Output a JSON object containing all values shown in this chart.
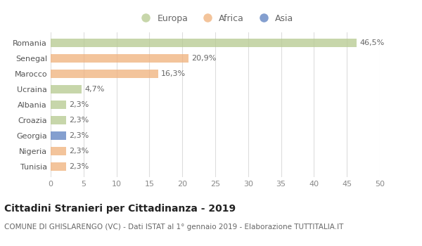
{
  "categories": [
    "Romania",
    "Senegal",
    "Marocco",
    "Ucraina",
    "Albania",
    "Croazia",
    "Georgia",
    "Nigeria",
    "Tunisia"
  ],
  "values": [
    46.5,
    20.9,
    16.3,
    4.7,
    2.3,
    2.3,
    2.3,
    2.3,
    2.3
  ],
  "labels": [
    "46,5%",
    "20,9%",
    "16,3%",
    "4,7%",
    "2,3%",
    "2,3%",
    "2,3%",
    "2,3%",
    "2,3%"
  ],
  "colors": [
    "#b5c98e",
    "#f0b07a",
    "#f0b07a",
    "#b5c98e",
    "#b5c98e",
    "#b5c98e",
    "#5b7fbf",
    "#f0b07a",
    "#f0b07a"
  ],
  "legend": [
    {
      "label": "Europa",
      "color": "#b5c98e"
    },
    {
      "label": "Africa",
      "color": "#f0b07a"
    },
    {
      "label": "Asia",
      "color": "#5b7fbf"
    }
  ],
  "xlim": [
    0,
    50
  ],
  "xticks": [
    0,
    5,
    10,
    15,
    20,
    25,
    30,
    35,
    40,
    45,
    50
  ],
  "title": "Cittadini Stranieri per Cittadinanza - 2019",
  "subtitle": "COMUNE DI GHISLARENGO (VC) - Dati ISTAT al 1° gennaio 2019 - Elaborazione TUTTITALIA.IT",
  "background_color": "#ffffff",
  "grid_color": "#dddddd",
  "bar_height": 0.55,
  "label_fontsize": 8,
  "title_fontsize": 10,
  "subtitle_fontsize": 7.5,
  "tick_fontsize": 8,
  "ylabel_fontsize": 8,
  "alpha": 0.75
}
